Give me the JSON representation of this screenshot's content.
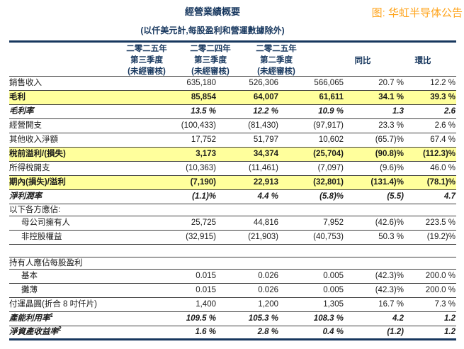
{
  "header": {
    "title": "經營業績概要",
    "subtitle": "(以仟美元計,每股盈利和營運數據除外)",
    "source_caption": "图: 华虹半导体公告"
  },
  "colors": {
    "navy_accent": "#17375E",
    "highlight_yellow": "#FFFF9C",
    "caption_orange": "#FFA41C",
    "row_line": "#404040"
  },
  "table": {
    "columns": [
      {
        "lines": [
          "二零二五年",
          "第三季度",
          "(未經審核)"
        ]
      },
      {
        "lines": [
          "二零二四年",
          "第三季度",
          "(未經審核)"
        ]
      },
      {
        "lines": [
          "二零二五年",
          "第二季度",
          "(未經審核)"
        ]
      },
      {
        "lines": [
          "同比"
        ]
      },
      {
        "lines": [
          "環比"
        ]
      }
    ],
    "rows": [
      {
        "label": "銷售收入",
        "values": [
          "635,180",
          "526,306",
          "566,065",
          "20.7 %",
          "12.2 %"
        ],
        "style": "normal"
      },
      {
        "label": "毛利",
        "values": [
          "85,854",
          "64,007",
          "61,611",
          "34.1 %",
          "39.3 %"
        ],
        "style": "highlight"
      },
      {
        "label": "毛利率",
        "values": [
          "13.5 %",
          "12.2 %",
          "10.9 %",
          "1.3",
          "2.6"
        ],
        "style": "italic"
      },
      {
        "label": "經營開支",
        "values": [
          "(100,433)",
          "(81,430)",
          "(97,917)",
          "23.3 %",
          "2.6 %"
        ],
        "style": "normal"
      },
      {
        "label": "其他收入淨額",
        "values": [
          "17,752",
          "51,797",
          "10,602",
          "(65.7)%",
          "67.4 %"
        ],
        "style": "normal"
      },
      {
        "label": "稅前溢利/(損失)",
        "values": [
          "3,173",
          "34,374",
          "(25,704)",
          "(90.8)%",
          "(112.3)%"
        ],
        "style": "highlight"
      },
      {
        "label": "所得稅開支",
        "values": [
          "(10,363)",
          "(11,461)",
          "(7,097)",
          "(9.6)%",
          "46.0 %"
        ],
        "style": "normal"
      },
      {
        "label": "期內(損失)/溢利",
        "values": [
          "(7,190)",
          "22,913",
          "(32,801)",
          "(131.4)%",
          "(78.1)%"
        ],
        "style": "highlight"
      },
      {
        "label": "淨利潤率",
        "values": [
          "(1.1)%",
          "4.4 %",
          "(5.8)%",
          "(5.5)",
          "4.7"
        ],
        "style": "italic"
      },
      {
        "label": "以下各方應佔:",
        "values": [
          "",
          "",
          "",
          "",
          ""
        ],
        "style": "section"
      },
      {
        "label": "母公司擁有人",
        "values": [
          "25,725",
          "44,816",
          "7,952",
          "(42.6)%",
          "223.5 %"
        ],
        "style": "indent"
      },
      {
        "label": "非控股權益",
        "values": [
          "(32,915)",
          "(21,903)",
          "(40,753)",
          "50.3 %",
          "(19.2)%"
        ],
        "style": "indent"
      },
      {
        "label": "",
        "values": [
          "",
          "",
          "",
          "",
          ""
        ],
        "style": "spacer"
      },
      {
        "label": "持有人應佔每股盈利",
        "values": [
          "",
          "",
          "",
          "",
          ""
        ],
        "style": "section"
      },
      {
        "label": "基本",
        "values": [
          "0.015",
          "0.026",
          "0.005",
          "(42.3)%",
          "200.0 %"
        ],
        "style": "indent"
      },
      {
        "label": "攤薄",
        "values": [
          "0.015",
          "0.026",
          "0.005",
          "(42.3)%",
          "200.0 %"
        ],
        "style": "indent"
      },
      {
        "label": "付運晶圓(折合 8 吋仟片)",
        "values": [
          "1,400",
          "1,200",
          "1,305",
          "16.7 %",
          "7.3 %"
        ],
        "style": "normal"
      },
      {
        "label": "產能利用率",
        "label_sup": "1",
        "values": [
          "109.5 %",
          "105.3 %",
          "108.3 %",
          "4.2",
          "1.2"
        ],
        "style": "italic"
      },
      {
        "label": "淨資產收益率",
        "label_sup": "2",
        "values": [
          "1.6 %",
          "2.8 %",
          "0.4 %",
          "(1.2)",
          "1.2"
        ],
        "style": "italic last"
      }
    ]
  }
}
